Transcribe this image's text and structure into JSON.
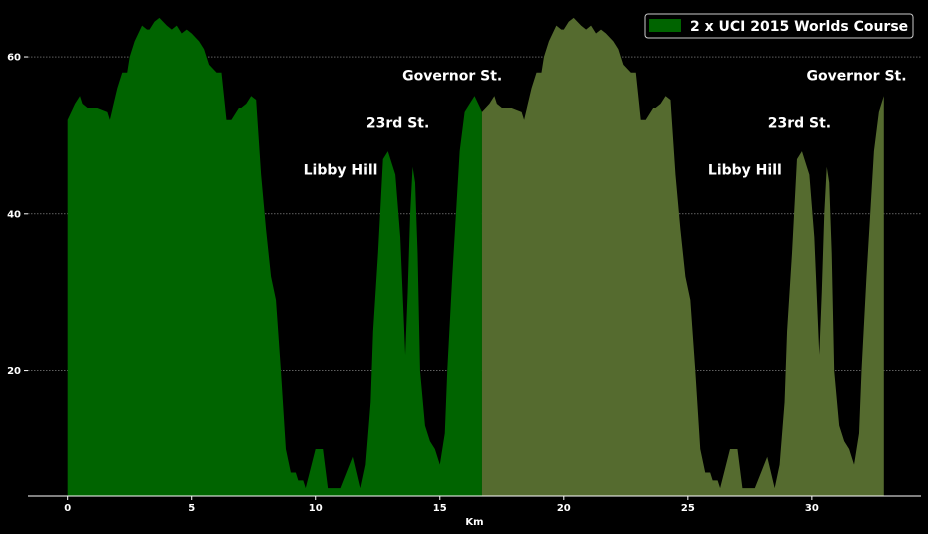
{
  "chart_data": {
    "type": "area",
    "xlabel": "Km",
    "ylabel": "",
    "xlim": [
      -1.6,
      34.4
    ],
    "ylim": [
      4,
      66
    ],
    "xticks": [
      0,
      5,
      10,
      15,
      20,
      25,
      30
    ],
    "yticks": [
      20,
      40,
      60
    ],
    "grid": "horizontal-dotted",
    "legend": {
      "position": "top-right",
      "entries": [
        {
          "label": "2 x UCI 2015 Worlds Course",
          "color": "#006400"
        }
      ]
    },
    "annotations": [
      {
        "text": "Libby Hill",
        "x": 11.0,
        "y": 45
      },
      {
        "text": "23rd St.",
        "x": 13.3,
        "y": 51
      },
      {
        "text": "Governor St.",
        "x": 15.5,
        "y": 57
      },
      {
        "text": "Libby Hill",
        "x": 27.3,
        "y": 45
      },
      {
        "text": "23rd St.",
        "x": 29.5,
        "y": 51
      },
      {
        "text": "Governor St.",
        "x": 31.8,
        "y": 57
      }
    ],
    "series": [
      {
        "name": "2 x UCI 2015 Worlds Course",
        "color": "#006400",
        "x": [
          0,
          0.3,
          0.5,
          0.6,
          0.8,
          1.2,
          1.6,
          1.7,
          2.0,
          2.2,
          2.4,
          2.5,
          2.7,
          3.0,
          3.2,
          3.3,
          3.5,
          3.7,
          4.0,
          4.2,
          4.4,
          4.6,
          4.8,
          5.0,
          5.3,
          5.5,
          5.7,
          6.0,
          6.2,
          6.4,
          6.6,
          6.8,
          6.9,
          7.0,
          7.2,
          7.4,
          7.6,
          7.8,
          8.0,
          8.2,
          8.4,
          8.6,
          8.8,
          9.0,
          9.2,
          9.3,
          9.5,
          9.6,
          10.0,
          10.3,
          10.5,
          10.6,
          10.8,
          11.0,
          11.5,
          11.8,
          12.0,
          12.2,
          12.3,
          12.5,
          12.7,
          12.9,
          13.0,
          13.2,
          13.4,
          13.6,
          13.7,
          13.8,
          13.9,
          14.0,
          14.1,
          14.2,
          14.4,
          14.6,
          14.8,
          15.0,
          15.2,
          15.3,
          15.5,
          15.8,
          16.0,
          16.2,
          16.4,
          16.7
        ],
        "values": [
          52,
          54,
          55,
          54,
          53.5,
          53.5,
          53,
          52,
          56,
          58,
          58,
          60,
          62,
          64,
          63.5,
          63.5,
          64.5,
          65,
          64,
          63.5,
          64,
          63,
          63.5,
          63,
          62,
          61,
          59,
          58,
          58,
          52,
          52,
          53,
          53.5,
          53.5,
          54,
          55,
          54.5,
          45,
          38,
          32,
          29,
          20,
          10,
          7,
          7,
          6,
          6,
          5,
          10,
          10,
          5,
          5,
          5,
          5,
          9,
          5,
          8,
          16,
          25,
          35,
          47,
          48,
          47,
          45,
          37,
          22,
          30,
          40,
          46,
          44,
          35,
          20,
          13,
          11,
          10,
          8,
          12,
          20,
          32,
          48,
          53,
          54,
          55,
          53
        ]
      },
      {
        "name": "",
        "color": "#556B2F",
        "x": [
          16.7,
          17.0,
          17.2,
          17.3,
          17.5,
          17.9,
          18.3,
          18.4,
          18.7,
          18.9,
          19.1,
          19.2,
          19.4,
          19.7,
          19.9,
          20.0,
          20.2,
          20.4,
          20.7,
          20.9,
          21.1,
          21.3,
          21.5,
          21.7,
          22.0,
          22.2,
          22.4,
          22.7,
          22.9,
          23.1,
          23.3,
          23.5,
          23.6,
          23.7,
          23.9,
          24.1,
          24.3,
          24.5,
          24.7,
          24.9,
          25.1,
          25.3,
          25.5,
          25.7,
          25.9,
          26.0,
          26.2,
          26.3,
          26.7,
          27.0,
          27.2,
          27.3,
          27.5,
          27.7,
          28.2,
          28.5,
          28.7,
          28.9,
          29.0,
          29.2,
          29.4,
          29.6,
          29.7,
          29.9,
          30.1,
          30.3,
          30.4,
          30.5,
          30.6,
          30.7,
          30.8,
          30.9,
          31.1,
          31.3,
          31.5,
          31.7,
          31.9,
          32.0,
          32.2,
          32.5,
          32.7,
          32.9
        ],
        "values": [
          53,
          54,
          55,
          54,
          53.5,
          53.5,
          53,
          52,
          56,
          58,
          58,
          60,
          62,
          64,
          63.5,
          63.5,
          64.5,
          65,
          64,
          63.5,
          64,
          63,
          63.5,
          63,
          62,
          61,
          59,
          58,
          58,
          52,
          52,
          53,
          53.5,
          53.5,
          54,
          55,
          54.5,
          45,
          38,
          32,
          29,
          20,
          10,
          7,
          7,
          6,
          6,
          5,
          10,
          10,
          5,
          5,
          5,
          5,
          9,
          5,
          8,
          16,
          25,
          35,
          47,
          48,
          47,
          45,
          37,
          22,
          30,
          40,
          46,
          44,
          35,
          20,
          13,
          11,
          10,
          8,
          12,
          20,
          32,
          48,
          53,
          55
        ]
      }
    ]
  }
}
